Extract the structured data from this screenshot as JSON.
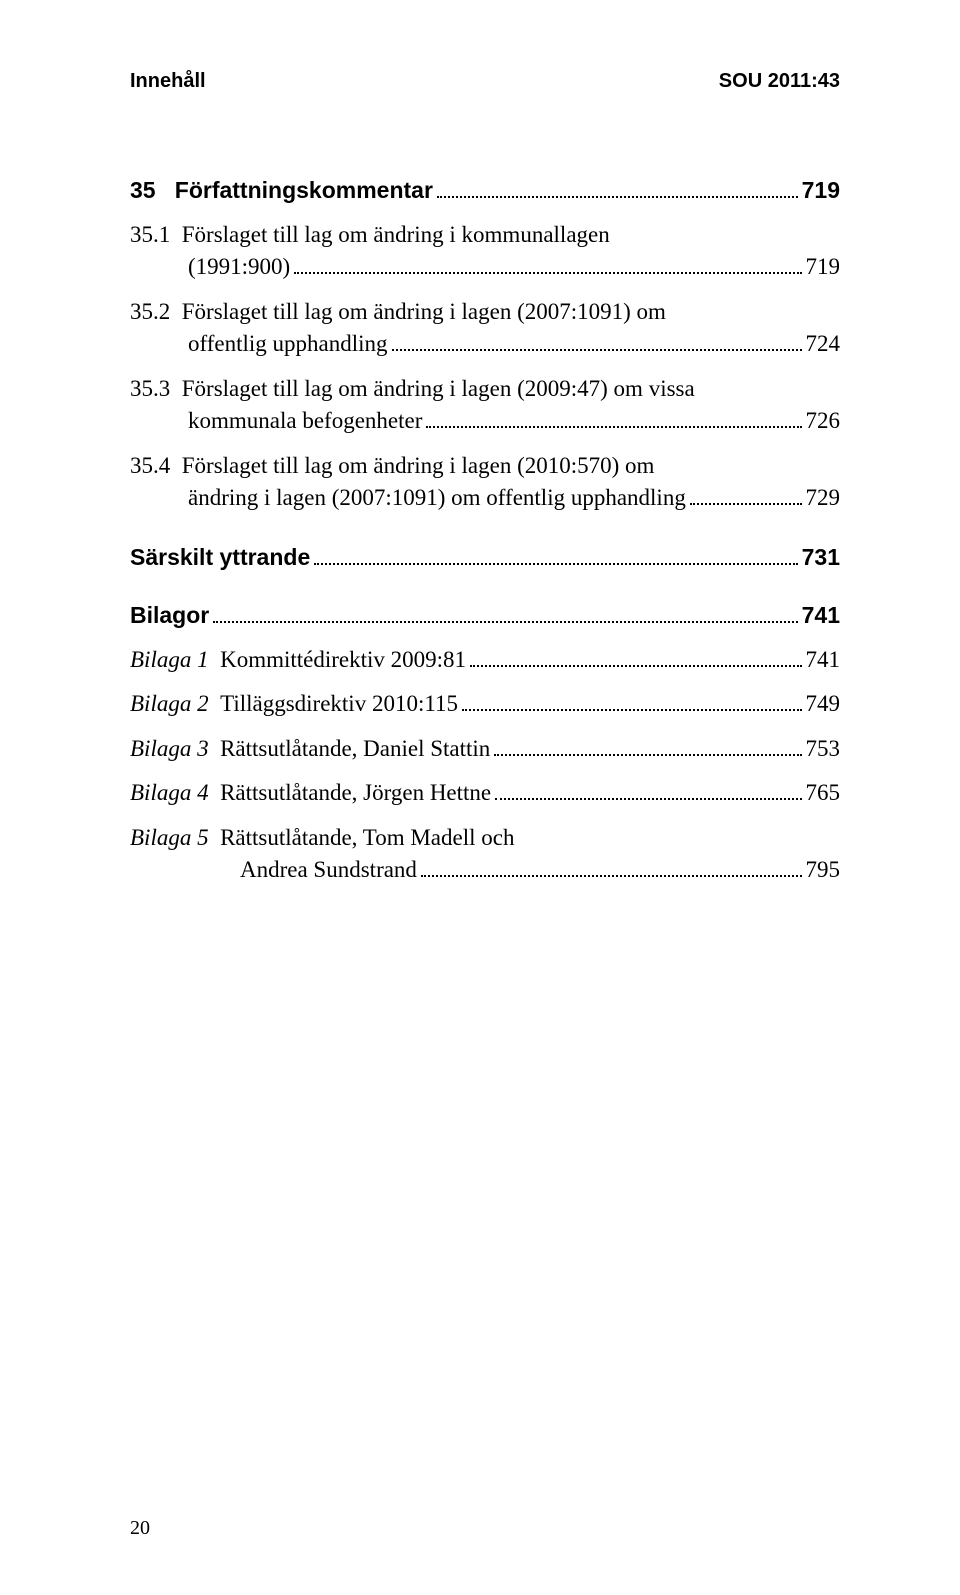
{
  "header": {
    "left": "Innehåll",
    "right": "SOU 2011:43"
  },
  "toc": {
    "s35": {
      "num": "35",
      "title": "Författningskommentar",
      "page": "719"
    },
    "s35_1": {
      "num": "35.1",
      "line1": "Förslaget till lag om ändring i kommunallagen",
      "line2": "(1991:900)",
      "page": "719"
    },
    "s35_2": {
      "num": "35.2",
      "line1": "Förslaget till lag om ändring i lagen (2007:1091) om",
      "line2": "offentlig upphandling",
      "page": "724"
    },
    "s35_3": {
      "num": "35.3",
      "line1": "Förslaget till lag om ändring i lagen (2009:47) om vissa",
      "line2": "kommunala befogenheter",
      "page": "726"
    },
    "s35_4": {
      "num": "35.4",
      "line1": "Förslaget till lag om ändring i lagen (2010:570) om",
      "line2": "ändring i lagen (2007:1091) om offentlig upphandling",
      "page": "729"
    },
    "yttrande": {
      "title": "Särskilt yttrande",
      "page": "731"
    },
    "bilagor": {
      "title": "Bilagor",
      "page": "741"
    },
    "b1": {
      "label": "Bilaga 1",
      "title": "Kommittédirektiv 2009:81",
      "page": "741"
    },
    "b2": {
      "label": "Bilaga 2",
      "title": "Tilläggsdirektiv 2010:115",
      "page": "749"
    },
    "b3": {
      "label": "Bilaga 3",
      "title": "Rättsutlåtande, Daniel Stattin",
      "page": "753"
    },
    "b4": {
      "label": "Bilaga 4",
      "title": "Rättsutlåtande, Jörgen Hettne",
      "page": "765"
    },
    "b5": {
      "label": "Bilaga 5",
      "line1": "Rättsutlåtande, Tom Madell och",
      "line2": "Andrea Sundstrand",
      "page": "795"
    }
  },
  "footer": {
    "pagenum": "20"
  }
}
